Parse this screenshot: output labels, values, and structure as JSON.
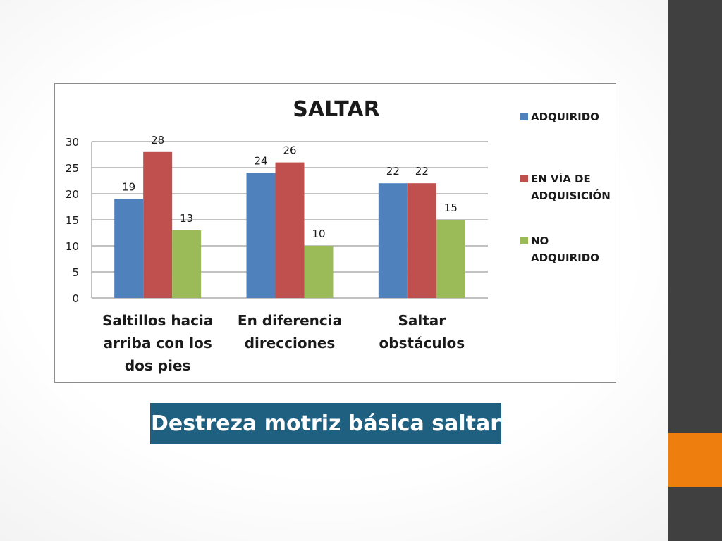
{
  "slide": {
    "caption": "Destreza motriz básica saltar",
    "colors": {
      "sidebar": "#404040",
      "accent": "#ee7f0e",
      "caption_bg": "#1f5f7f"
    }
  },
  "chart_data": {
    "type": "bar",
    "title": "SALTAR",
    "categories": [
      "Saltillos hacia arriba con los dos pies",
      "En diferencia direcciones",
      "Saltar obstáculos"
    ],
    "series": [
      {
        "name": "ADQUIRIDO",
        "color": "#4f81bd",
        "values": [
          19,
          24,
          22
        ]
      },
      {
        "name": "EN VÍA DE ADQUISICIÓN",
        "color": "#c0504d",
        "values": [
          28,
          26,
          22
        ]
      },
      {
        "name": "NO ADQUIRIDO",
        "color": "#9bbb59",
        "values": [
          13,
          10,
          15
        ]
      }
    ],
    "ylim": [
      0,
      30
    ],
    "yticks": [
      0,
      5,
      10,
      15,
      20,
      25,
      30
    ],
    "grid": true,
    "legend_position": "right",
    "data_labels": true
  }
}
